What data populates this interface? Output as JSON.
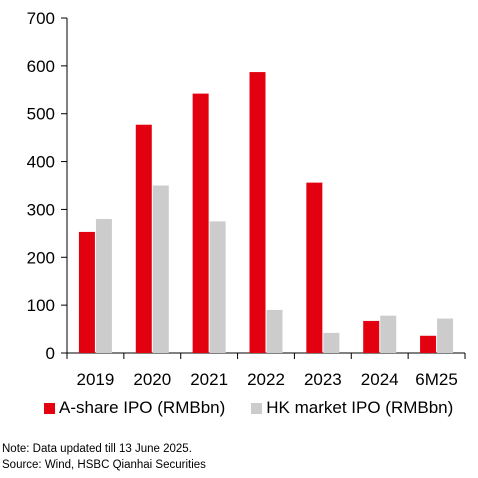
{
  "chart_data": {
    "type": "bar",
    "categories": [
      "2019",
      "2020",
      "2021",
      "2022",
      "2023",
      "2024",
      "6M25"
    ],
    "series": [
      {
        "name": "A-share IPO (RMBbn)",
        "color": "#e3000f",
        "values": [
          253,
          477,
          542,
          587,
          356,
          67,
          36
        ]
      },
      {
        "name": "HK market IPO (RMBbn)",
        "color": "#cccccc",
        "values": [
          280,
          350,
          275,
          90,
          42,
          78,
          72
        ]
      }
    ],
    "ylim": [
      0,
      700
    ],
    "yticks": [
      0,
      100,
      200,
      300,
      400,
      500,
      600,
      700
    ],
    "grid": false,
    "legend_position": "bottom"
  },
  "notes": {
    "note": "Note: Data updated till 13 June 2025.",
    "source": "Source: Wind, HSBC Qianhai Securities"
  }
}
